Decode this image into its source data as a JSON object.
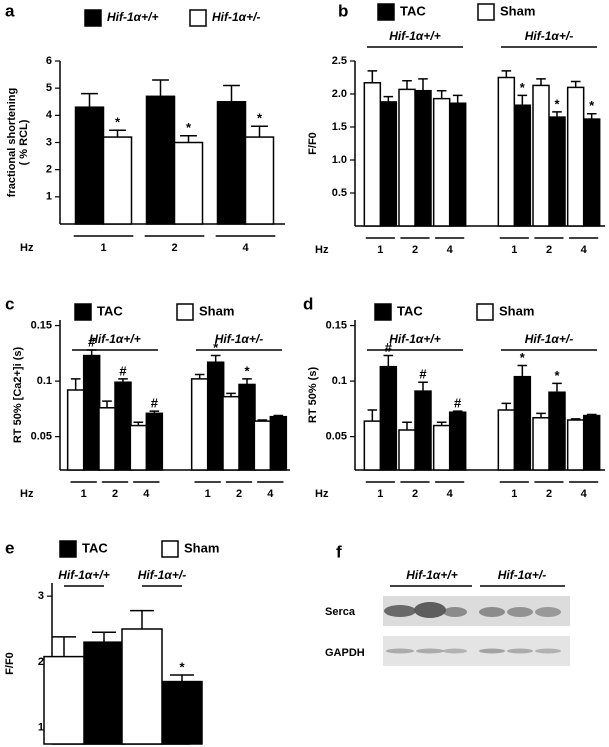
{
  "chart_data": [
    {
      "label": "a",
      "type": "bar",
      "ylabel": [
        "fractional shortening",
        "( % RCL)"
      ],
      "ylim": [
        0,
        6
      ],
      "yticks": [
        1,
        2,
        3,
        4,
        5,
        6
      ],
      "x_label": "Hz",
      "categories": [
        "1",
        "2",
        "4"
      ],
      "series": [
        {
          "name": "Hif-1α+/+",
          "color": "#000000",
          "values": [
            4.3,
            4.7,
            4.5
          ],
          "errors": [
            0.5,
            0.6,
            0.6
          ],
          "annotations": [
            null,
            null,
            null
          ]
        },
        {
          "name": "Hif-1α+/-",
          "color": "#ffffff",
          "values": [
            3.2,
            3.0,
            3.2
          ],
          "errors": [
            0.25,
            0.25,
            0.4
          ],
          "annotations": [
            "*",
            "*",
            "*"
          ]
        }
      ]
    },
    {
      "label": "b",
      "type": "bar",
      "ylabel": [
        "F/F0"
      ],
      "ylim": [
        0,
        2.5
      ],
      "yticks": [
        0.5,
        {
          "value": 1,
          "label": "1.0"
        },
        1.5,
        {
          "value": 2,
          "label": "2.0"
        },
        2.5
      ],
      "x_label": "Hz",
      "groups": [
        "Hif-1α+/+",
        "Hif-1α+/-"
      ],
      "categories": [
        "1",
        "2",
        "4",
        "1",
        "2",
        "4"
      ],
      "series": [
        {
          "name": "TAC",
          "color": "#000000",
          "values": [
            1.88,
            2.05,
            1.86,
            1.83,
            1.65,
            1.62
          ],
          "errors": [
            0.08,
            0.18,
            0.12,
            0.15,
            0.08,
            0.08
          ],
          "annotations": [
            null,
            null,
            null,
            "*",
            "*",
            "*"
          ]
        },
        {
          "name": "Sham",
          "color": "#ffffff",
          "values": [
            2.17,
            2.07,
            1.93,
            2.25,
            2.13,
            2.1
          ],
          "errors": [
            0.18,
            0.13,
            0.12,
            0.1,
            0.1,
            0.09
          ],
          "annotations": [
            null,
            null,
            null,
            null,
            null,
            null
          ]
        }
      ]
    },
    {
      "label": "c",
      "type": "bar",
      "ylabel": [
        "RT 50% [Ca2+]i (s)"
      ],
      "ylim": [
        0.02,
        0.155
      ],
      "yticks": [
        0.05,
        0.1,
        0.15
      ],
      "x_label": "Hz",
      "groups": [
        "Hif-1α+/+",
        "Hif-1α+/-"
      ],
      "categories": [
        "1",
        "2",
        "4",
        "1",
        "2",
        "4"
      ],
      "series": [
        {
          "name": "TAC",
          "color": "#000000",
          "values": [
            0.123,
            0.099,
            0.071,
            0.117,
            0.097,
            0.068
          ],
          "errors": [
            0.005,
            0.003,
            0.002,
            0.006,
            0.005,
            0.001
          ],
          "annotations": [
            "#",
            "#",
            "#",
            "*",
            "*",
            null
          ]
        },
        {
          "name": "Sham",
          "color": "#ffffff",
          "values": [
            0.092,
            0.076,
            0.06,
            0.102,
            0.086,
            0.064
          ],
          "errors": [
            0.01,
            0.006,
            0.003,
            0.004,
            0.003,
            0.001
          ],
          "annotations": [
            null,
            null,
            null,
            null,
            null,
            null
          ]
        }
      ]
    },
    {
      "label": "d",
      "type": "bar",
      "ylabel": [
        "RT 50% (s)"
      ],
      "ylim": [
        0.02,
        0.155
      ],
      "yticks": [
        0.05,
        0.1,
        0.15
      ],
      "x_label": "Hz",
      "groups": [
        "Hif-1α+/+",
        "Hif-1α+/-"
      ],
      "categories": [
        "1",
        "2",
        "4",
        "1",
        "2",
        "4"
      ],
      "series": [
        {
          "name": "TAC",
          "color": "#000000",
          "values": [
            0.113,
            0.091,
            0.072,
            0.104,
            0.09,
            0.069
          ],
          "errors": [
            0.01,
            0.008,
            0.001,
            0.01,
            0.008,
            0.001
          ],
          "annotations": [
            "#",
            "#",
            "#",
            "*",
            "*",
            null
          ]
        },
        {
          "name": "Sham",
          "color": "#ffffff",
          "values": [
            0.064,
            0.056,
            0.06,
            0.074,
            0.067,
            0.065
          ],
          "errors": [
            0.01,
            0.007,
            0.003,
            0.006,
            0.004,
            0.001
          ],
          "annotations": [
            null,
            null,
            null,
            null,
            null,
            null
          ]
        }
      ]
    },
    {
      "label": "e",
      "type": "bar",
      "ylabel": [
        "F/F0"
      ],
      "ylim": [
        0.75,
        3.2
      ],
      "yticks": [
        1,
        2,
        3
      ],
      "groups": [
        "Hif-1α+/+",
        "Hif-1α+/-"
      ],
      "series": [
        {
          "name": "TAC",
          "color": "#000000",
          "values": [
            2.3,
            1.7
          ],
          "errors": [
            0.15,
            0.1
          ],
          "annotations": [
            null,
            "*"
          ]
        },
        {
          "name": "Sham",
          "color": "#ffffff",
          "values": [
            2.08,
            2.5
          ],
          "errors": [
            0.3,
            0.28
          ],
          "annotations": [
            null,
            null
          ]
        }
      ]
    }
  ],
  "blot": {
    "label": "f",
    "groups": [
      "Hif-1α+/+",
      "Hif-1α+/-"
    ],
    "rows": [
      "Serca",
      "GAPDH"
    ]
  }
}
